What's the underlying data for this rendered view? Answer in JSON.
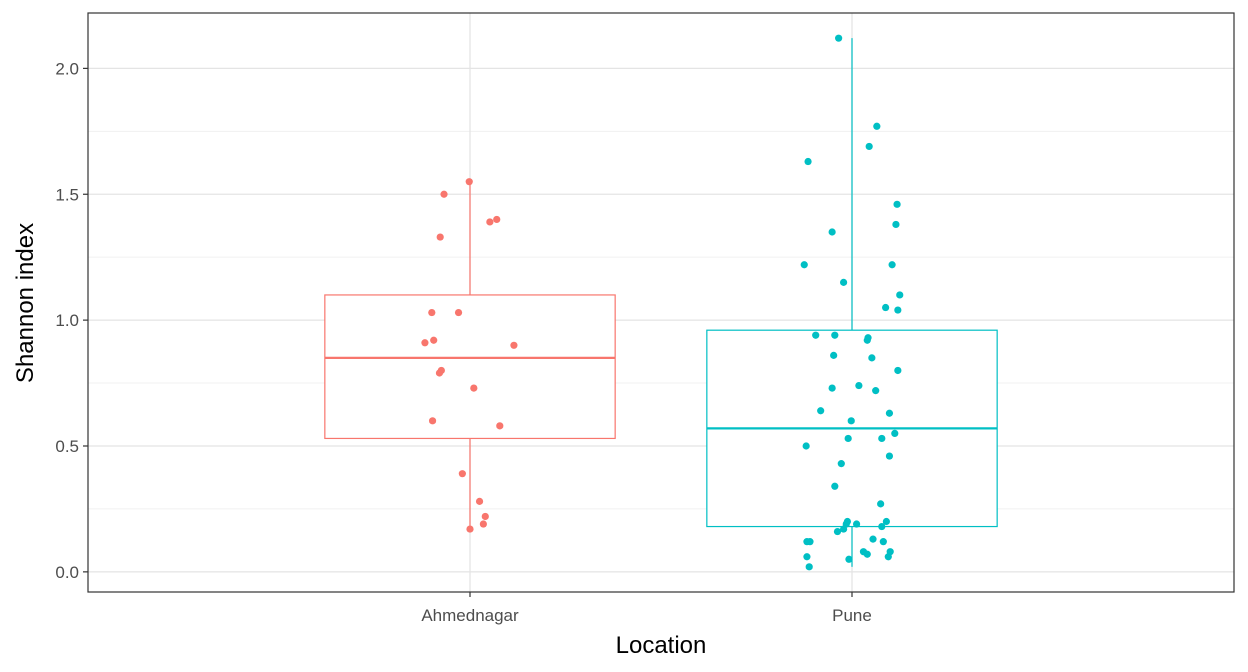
{
  "chart_data": {
    "type": "box",
    "xlabel": "Location",
    "ylabel": "Shannon index",
    "ylim": [
      -0.08,
      2.22
    ],
    "yticks": [
      0.0,
      0.5,
      1.0,
      1.5,
      2.0
    ],
    "ytick_labels": [
      "0.0",
      "0.5",
      "1.0",
      "1.5",
      "2.0"
    ],
    "grid": true,
    "legend": "none",
    "categories": [
      "Ahmednagar",
      "Pune"
    ],
    "series": [
      {
        "category": "Ahmednagar",
        "color": "#F8766D",
        "box": {
          "whisker_low": 0.17,
          "q1": 0.53,
          "median": 0.85,
          "q3": 1.1,
          "whisker_high": 1.55
        },
        "points": [
          [
            -0.002,
            1.55
          ],
          [
            -0.068,
            1.5
          ],
          [
            0.07,
            1.4
          ],
          [
            0.052,
            1.39
          ],
          [
            -0.078,
            1.33
          ],
          [
            -0.1,
            1.03
          ],
          [
            -0.03,
            1.03
          ],
          [
            -0.095,
            0.92
          ],
          [
            -0.118,
            0.91
          ],
          [
            0.115,
            0.9
          ],
          [
            -0.075,
            0.8
          ],
          [
            -0.08,
            0.79
          ],
          [
            0.01,
            0.73
          ],
          [
            -0.098,
            0.6
          ],
          [
            0.078,
            0.58
          ],
          [
            -0.02,
            0.39
          ],
          [
            0.025,
            0.28
          ],
          [
            0.04,
            0.22
          ],
          [
            0.035,
            0.19
          ],
          [
            0.0,
            0.17
          ]
        ]
      },
      {
        "category": "Pune",
        "color": "#00BFC4",
        "box": {
          "whisker_low": 0.02,
          "q1": 0.18,
          "median": 0.57,
          "q3": 0.96,
          "whisker_high": 2.12
        },
        "points": [
          [
            -0.035,
            2.12
          ],
          [
            0.065,
            1.77
          ],
          [
            0.045,
            1.69
          ],
          [
            -0.115,
            1.63
          ],
          [
            0.118,
            1.46
          ],
          [
            0.115,
            1.38
          ],
          [
            -0.052,
            1.35
          ],
          [
            -0.125,
            1.22
          ],
          [
            0.105,
            1.22
          ],
          [
            -0.022,
            1.15
          ],
          [
            0.125,
            1.1
          ],
          [
            0.088,
            1.05
          ],
          [
            0.12,
            1.04
          ],
          [
            -0.095,
            0.94
          ],
          [
            -0.045,
            0.94
          ],
          [
            0.042,
            0.93
          ],
          [
            0.04,
            0.92
          ],
          [
            -0.048,
            0.86
          ],
          [
            0.052,
            0.85
          ],
          [
            0.12,
            0.8
          ],
          [
            0.018,
            0.74
          ],
          [
            -0.052,
            0.73
          ],
          [
            0.062,
            0.72
          ],
          [
            -0.082,
            0.64
          ],
          [
            0.098,
            0.63
          ],
          [
            -0.002,
            0.6
          ],
          [
            0.112,
            0.55
          ],
          [
            -0.01,
            0.53
          ],
          [
            0.078,
            0.53
          ],
          [
            -0.12,
            0.5
          ],
          [
            0.098,
            0.46
          ],
          [
            -0.028,
            0.43
          ],
          [
            -0.045,
            0.34
          ],
          [
            0.075,
            0.27
          ],
          [
            0.09,
            0.2
          ],
          [
            -0.012,
            0.2
          ],
          [
            -0.015,
            0.19
          ],
          [
            0.012,
            0.19
          ],
          [
            0.078,
            0.18
          ],
          [
            -0.022,
            0.17
          ],
          [
            -0.038,
            0.16
          ],
          [
            0.055,
            0.13
          ],
          [
            -0.118,
            0.12
          ],
          [
            -0.11,
            0.12
          ],
          [
            0.082,
            0.12
          ],
          [
            0.03,
            0.08
          ],
          [
            0.1,
            0.08
          ],
          [
            0.04,
            0.07
          ],
          [
            0.095,
            0.06
          ],
          [
            -0.008,
            0.05
          ],
          [
            -0.118,
            0.06
          ],
          [
            -0.112,
            0.02
          ]
        ]
      }
    ]
  }
}
